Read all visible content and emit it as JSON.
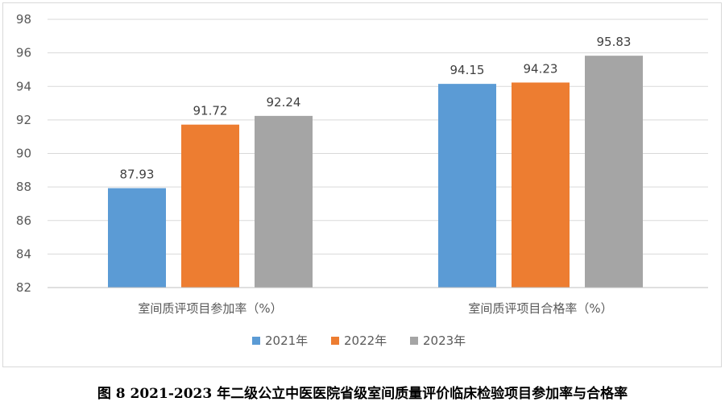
{
  "chart_data": {
    "type": "bar",
    "title": "",
    "xlabel": "",
    "ylabel": "",
    "categories": [
      "室间质评项目参加率（%）",
      "室间质评项目合格率（%）"
    ],
    "series": [
      {
        "name": "2021年",
        "color": "#5b9bd5",
        "values": [
          87.93,
          94.15
        ],
        "labels": [
          "87.93",
          "94.15"
        ]
      },
      {
        "name": "2022年",
        "color": "#ed7d31",
        "values": [
          91.72,
          94.23
        ],
        "labels": [
          "91.72",
          "94.23"
        ]
      },
      {
        "name": "2023年",
        "color": "#a5a5a5",
        "values": [
          92.24,
          95.83
        ],
        "labels": [
          "92.24",
          "95.83"
        ]
      }
    ],
    "ylim": [
      82,
      98
    ],
    "yticks": [
      82,
      84,
      86,
      88,
      90,
      92,
      94,
      96,
      98
    ],
    "grid": true,
    "legend": "bottom"
  },
  "caption": "图 8 2021-2023 年二级公立中医医院省级室间质量评价临床检验项目参加率与合格率"
}
